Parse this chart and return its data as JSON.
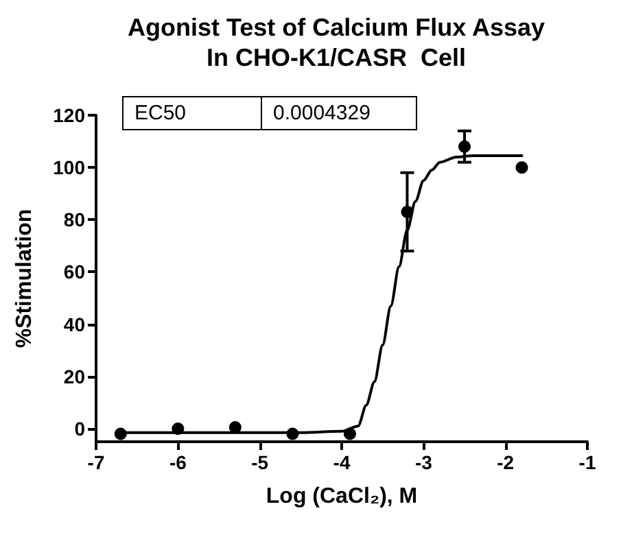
{
  "chart_data": {
    "type": "scatter",
    "title": "Agonist Test of Calcium Flux Assay\nIn CHO-K1/CASR  Cell",
    "xlabel": "Log (CaCl₂), M",
    "ylabel": "%Stimulation",
    "annotations": [
      "EC50",
      "0.0004329"
    ],
    "xlim": [
      -7,
      -1
    ],
    "xticks": [
      -7,
      -6,
      -5,
      -4,
      -3,
      -2,
      -1
    ],
    "ylim": [
      -5,
      120
    ],
    "yticks": [
      0,
      20,
      40,
      60,
      80,
      100,
      120
    ],
    "grid": false,
    "series": [
      {
        "color": "#000000",
        "marker": "circle",
        "x": [
          -6.7,
          -6.0,
          -5.3,
          -4.6,
          -3.9,
          -3.2,
          -2.5,
          -1.8
        ],
        "values": [
          -2,
          0,
          0.5,
          -2,
          -2,
          83,
          108,
          100
        ],
        "errors": [
          null,
          null,
          null,
          null,
          null,
          [
            68,
            98
          ],
          [
            102,
            114
          ],
          null
        ]
      },
      {
        "type": "line",
        "color": "#000000",
        "marker": "none",
        "line_style": "solid",
        "x": [
          -6.7,
          -4.5,
          -4.0,
          -3.8,
          -3.7,
          -3.6,
          -3.5,
          -3.4,
          -3.3,
          -3.2,
          -3.1,
          -3.0,
          -2.9,
          -2.8,
          -2.6,
          -2.4,
          -1.8
        ],
        "values": [
          -1.5,
          -1.5,
          -1,
          1,
          9,
          18,
          32,
          47,
          62,
          76,
          87,
          95,
          99,
          102,
          104,
          104.5,
          104.5
        ]
      }
    ]
  }
}
